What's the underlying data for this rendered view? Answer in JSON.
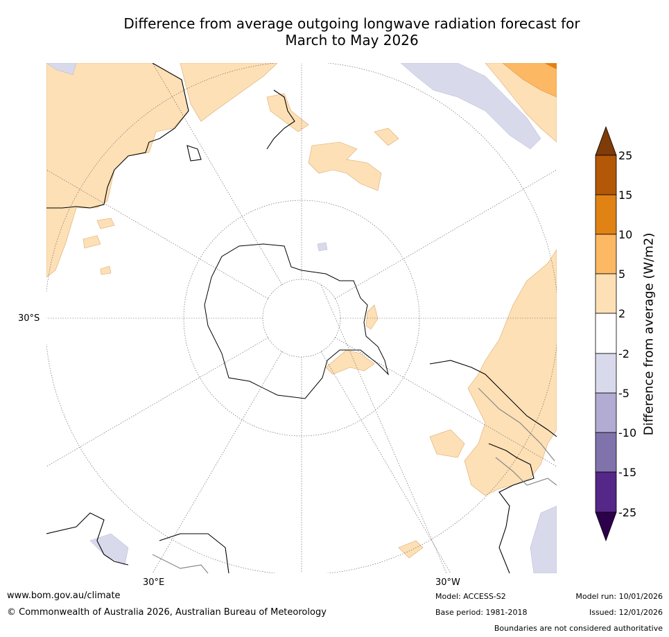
{
  "title": {
    "line1": "Difference from average outgoing longwave radiation forecast for",
    "line2": "March to May 2026"
  },
  "map": {
    "lat_label": "30°S",
    "lon_labels": {
      "east": "30°E",
      "west": "30°W"
    }
  },
  "colorbar": {
    "axis_label": "Difference from average (W/m2)",
    "ticks": [
      "25",
      "15",
      "10",
      "5",
      "2",
      "-2",
      "-5",
      "-10",
      "-15",
      "-25"
    ],
    "colors": {
      "over": "#7f3b08",
      "c15_25": "#b35806",
      "c10_15": "#e08214",
      "c5_10": "#fdb863",
      "c2_5": "#fee0b6",
      "c_2_2": "#ffffff",
      "c_5_2": "#d8daeb",
      "c_10_5": "#b2abd2",
      "c_15_10": "#8073ac",
      "c_25_15": "#542788",
      "under": "#2d004b"
    }
  },
  "footer": {
    "url": "www.bom.gov.au/climate",
    "copyright": "© Commonwealth of Australia 2026, Australian Bureau of Meteorology",
    "model": "Model: ACCESS-S2",
    "base_period": "Base period: 1981-2018",
    "model_run": "Model run: 10/01/2026",
    "issued": "Issued: 12/01/2026",
    "disclaimer": "Boundaries are not considered authoritative"
  }
}
